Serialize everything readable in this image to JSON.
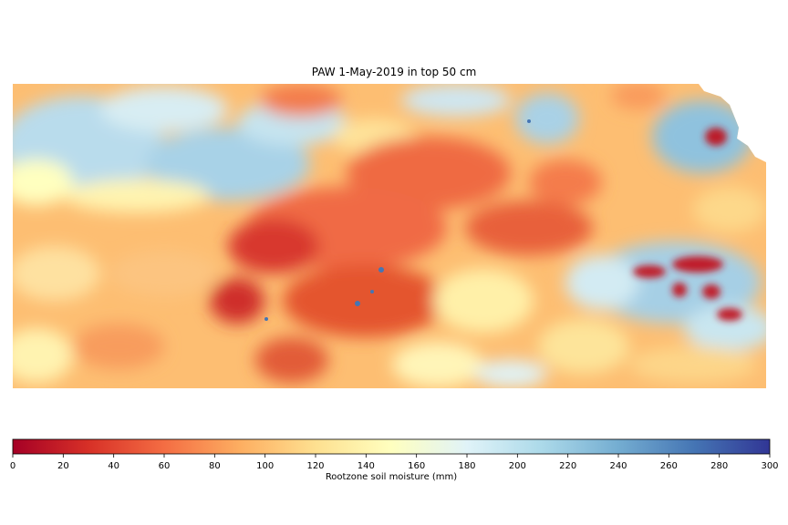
{
  "chart_data": {
    "type": "heatmap",
    "title": "PAW 1-May-2019 in top 50 cm",
    "colorbar": {
      "label": "Rootzone soil moisture (mm)",
      "range": [
        0,
        300
      ],
      "ticks": [
        0,
        20,
        40,
        60,
        80,
        100,
        120,
        140,
        160,
        180,
        200,
        220,
        240,
        260,
        280,
        300
      ],
      "colormap": "RdYlBu",
      "stops": [
        "#a50026",
        "#d73027",
        "#f46d43",
        "#fdae61",
        "#fee090",
        "#ffffbf",
        "#e0f3f8",
        "#abd9e9",
        "#74add1",
        "#4575b4",
        "#313695"
      ]
    },
    "grid": false,
    "description_regions": [
      {
        "area": "northwest",
        "value_range": [
          160,
          220
        ]
      },
      {
        "area": "central-south",
        "value_range": [
          20,
          80
        ]
      },
      {
        "area": "southeast",
        "value_range": [
          200,
          260
        ]
      },
      {
        "area": "south",
        "value_range": [
          80,
          140
        ]
      }
    ]
  }
}
